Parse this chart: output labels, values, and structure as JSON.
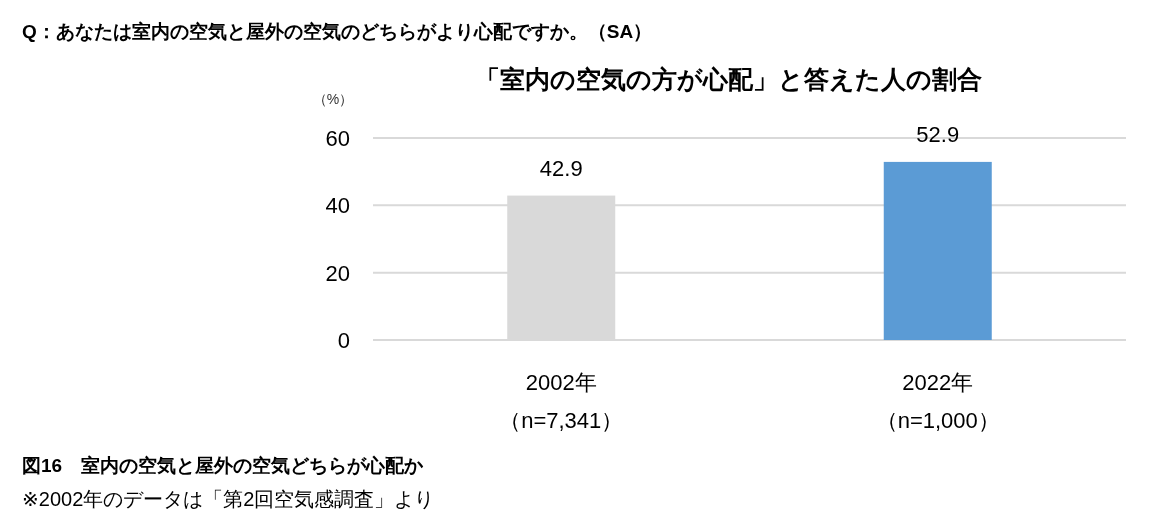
{
  "chart_data": {
    "type": "bar",
    "subtitle": "Q：あなたは室内の空気と屋外の空気のどちらがより心配ですか。（SA）",
    "title": "「室内の空気の方が心配」と答えた人の割合",
    "ylabel": "（%）",
    "categories": [
      "2002年（n=7,341）",
      "2022年（n=1,000）"
    ],
    "values": [
      42.9,
      52.9
    ],
    "colors": [
      "#d9d9d9",
      "#5b9bd5"
    ],
    "ylim": [
      0,
      60
    ],
    "yticks": [
      0,
      20,
      40,
      60
    ],
    "grid": "y",
    "data_labels": true,
    "annotations": [
      "図16　室内の空気と屋外の空気どちらが心配か",
      "※2002年のデータは「第2回空気感調査」より"
    ]
  }
}
